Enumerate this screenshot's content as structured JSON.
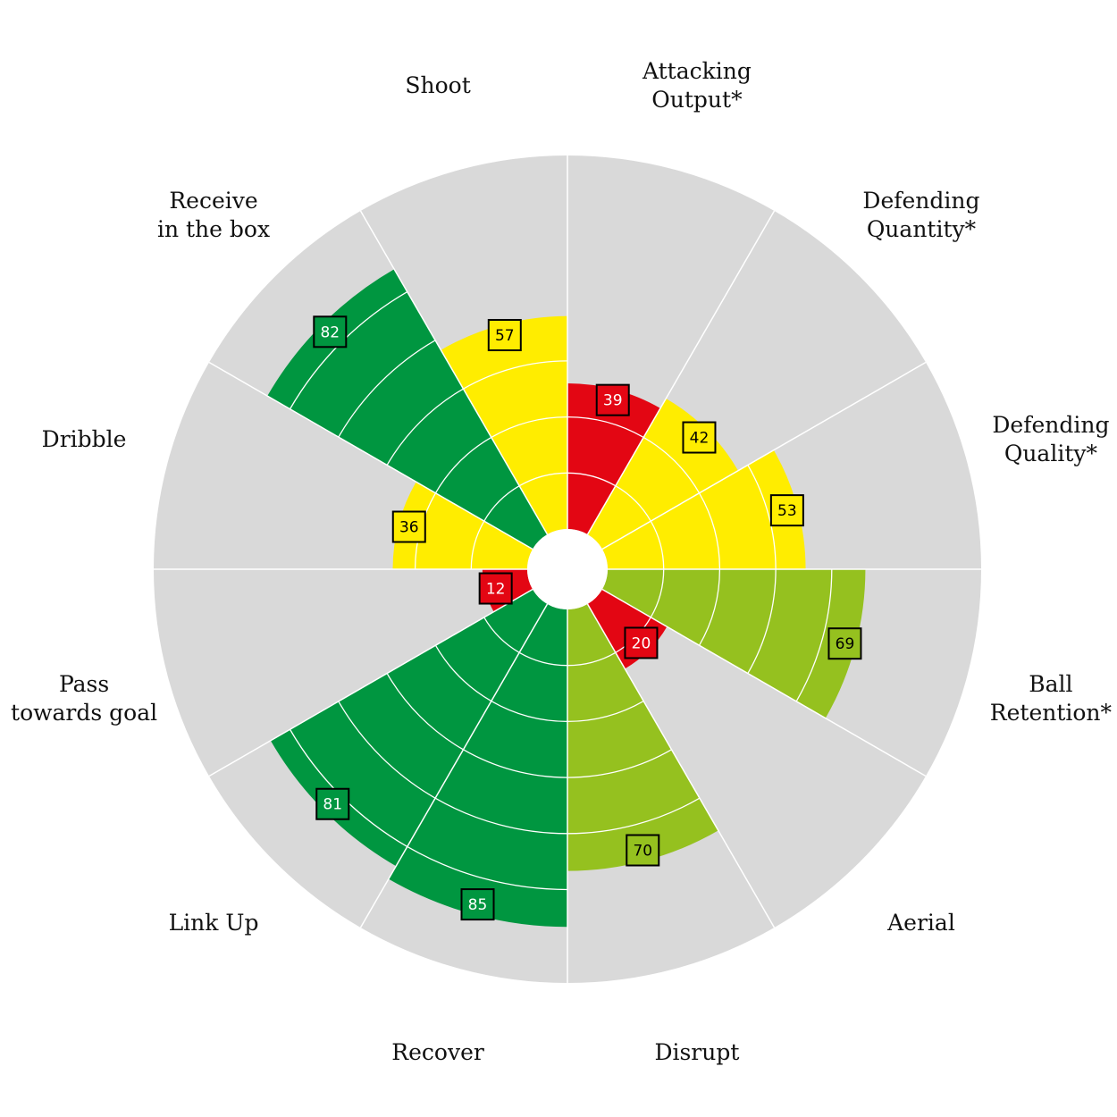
{
  "chart_data": {
    "type": "polar-bar",
    "max_value": 100,
    "rings": [
      15,
      30,
      45,
      60,
      75,
      90
    ],
    "colors": {
      "background": "#d9d9d9",
      "grid": "#ffffff",
      "red": "#e30613",
      "yellow": "#ffed00",
      "lightgreen": "#95c11f",
      "darkgreen": "#009640"
    },
    "categories": [
      {
        "label_lines": [
          "Attacking",
          "Output*"
        ],
        "value": 39,
        "color": "red"
      },
      {
        "label_lines": [
          "Defending",
          "Quantity*"
        ],
        "value": 42,
        "color": "yellow"
      },
      {
        "label_lines": [
          "Defending",
          "Quality*"
        ],
        "value": 53,
        "color": "yellow"
      },
      {
        "label_lines": [
          "Ball",
          "Retention*"
        ],
        "value": 69,
        "color": "lightgreen"
      },
      {
        "label_lines": [
          "Aerial"
        ],
        "value": 20,
        "color": "red"
      },
      {
        "label_lines": [
          "Disrupt"
        ],
        "value": 70,
        "color": "lightgreen"
      },
      {
        "label_lines": [
          "Recover"
        ],
        "value": 85,
        "color": "darkgreen"
      },
      {
        "label_lines": [
          "Link Up"
        ],
        "value": 81,
        "color": "darkgreen"
      },
      {
        "label_lines": [
          "Pass",
          "towards goal"
        ],
        "value": 12,
        "color": "red"
      },
      {
        "label_lines": [
          "Dribble"
        ],
        "value": 36,
        "color": "yellow"
      },
      {
        "label_lines": [
          "Receive",
          "in the box"
        ],
        "value": 82,
        "color": "darkgreen"
      },
      {
        "label_lines": [
          "Shoot"
        ],
        "value": 57,
        "color": "yellow"
      }
    ]
  }
}
